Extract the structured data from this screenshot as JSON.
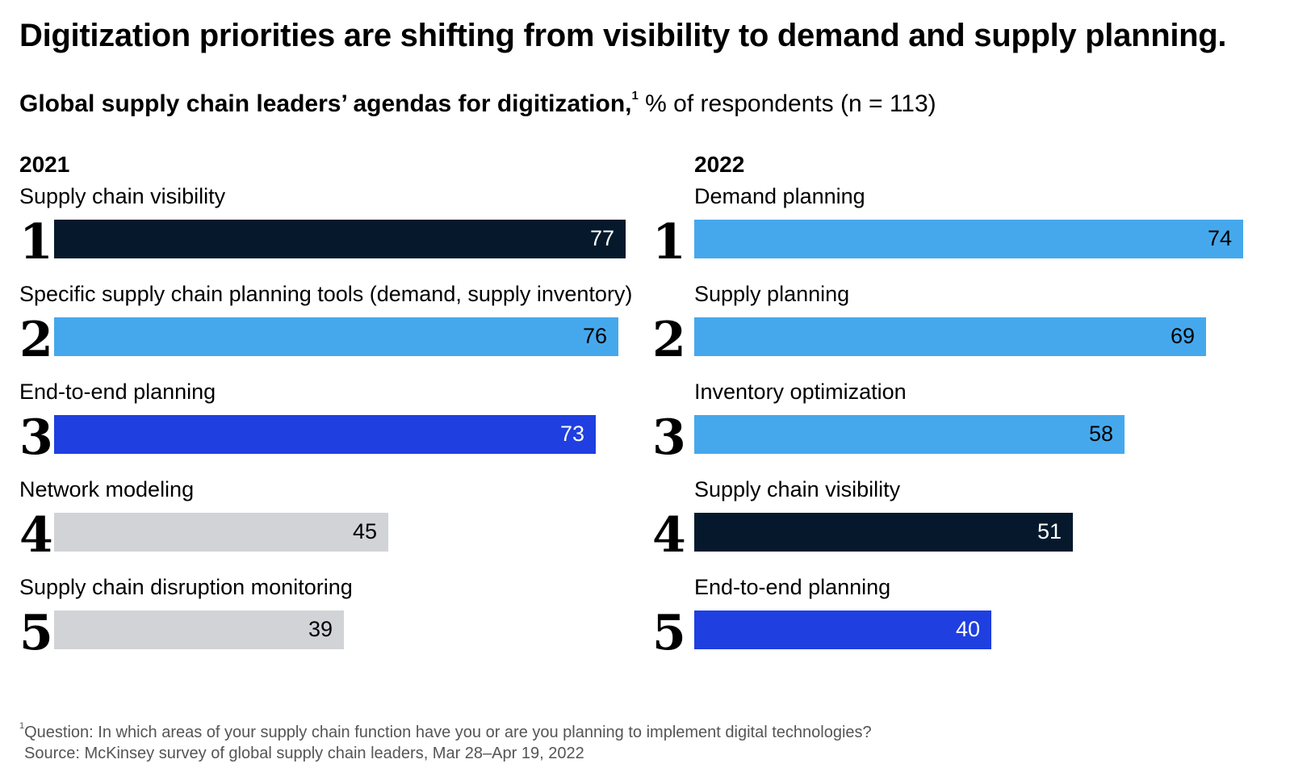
{
  "title": "Digitization priorities are shifting from visibility to demand and supply planning.",
  "subtitle": {
    "bold": "Global supply chain leaders’ agendas for digitization,",
    "footnote_mark": "1",
    "rest": " % of respondents (n = 113)"
  },
  "colors": {
    "dark": "#06192c",
    "light_blue": "#46a8ec",
    "blue": "#1f3fe0",
    "gray": "#d1d3d7"
  },
  "chart_data": [
    {
      "type": "bar",
      "orientation": "horizontal",
      "title": "2021",
      "ranks": [
        "1",
        "2",
        "3",
        "4",
        "5"
      ],
      "categories": [
        "Supply chain visibility",
        "Specific supply chain planning tools (demand, supply inventory)",
        "End-to-end planning",
        "Network modeling",
        "Supply chain disruption monitoring"
      ],
      "values": [
        77,
        76,
        73,
        45,
        39
      ],
      "value_labels": [
        "77",
        "76",
        "73",
        "45",
        "39"
      ],
      "bar_colors": [
        "#06192c",
        "#46a8ec",
        "#1f3fe0",
        "#d1d3d7",
        "#d1d3d7"
      ],
      "label_colors": [
        "#ffffff",
        "#000000",
        "#ffffff",
        "#000000",
        "#000000"
      ],
      "xlim": [
        0,
        77
      ]
    },
    {
      "type": "bar",
      "orientation": "horizontal",
      "title": "2022",
      "ranks": [
        "1",
        "2",
        "3",
        "4",
        "5"
      ],
      "categories": [
        "Demand planning",
        "Supply planning",
        "Inventory optimization",
        "Supply chain visibility",
        "End-to-end planning"
      ],
      "values": [
        74,
        69,
        58,
        51,
        40
      ],
      "value_labels": [
        "74",
        "69",
        "58",
        "51",
        "40"
      ],
      "bar_colors": [
        "#46a8ec",
        "#46a8ec",
        "#46a8ec",
        "#06192c",
        "#1f3fe0"
      ],
      "label_colors": [
        "#000000",
        "#000000",
        "#000000",
        "#ffffff",
        "#ffffff"
      ],
      "xlim": [
        0,
        74
      ]
    }
  ],
  "footnote": {
    "mark": "1",
    "text": "Question: In which areas of your supply chain function have you or are you planning to implement digital technologies?"
  },
  "source": "Source: McKinsey survey of global supply chain leaders, Mar 28–Apr 19, 2022"
}
